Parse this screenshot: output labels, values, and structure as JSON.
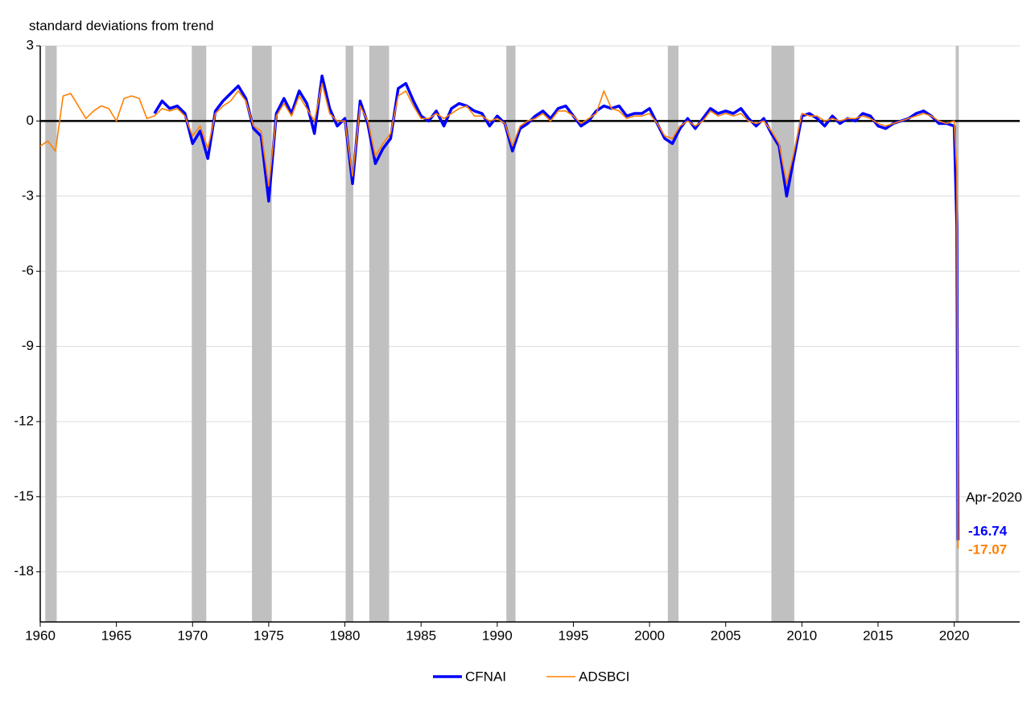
{
  "chart_data": {
    "type": "line",
    "y_label": "standard deviations from trend",
    "annotation": "Apr-2020",
    "xlim": [
      1960,
      2024.3
    ],
    "ylim": [
      -20,
      3
    ],
    "xticks": [
      1960,
      1965,
      1970,
      1975,
      1980,
      1985,
      1990,
      1995,
      2000,
      2005,
      2010,
      2015,
      2020
    ],
    "yticks": [
      3,
      0,
      -3,
      -6,
      -9,
      -12,
      -15,
      -18
    ],
    "grid": true,
    "hline": 0,
    "legend": "bottom",
    "recession_color": "#c0c0c0",
    "recessions": [
      [
        1960.33,
        1961.08
      ],
      [
        1969.95,
        1970.9
      ],
      [
        1973.9,
        1975.2
      ],
      [
        1980.05,
        1980.55
      ],
      [
        1981.6,
        1982.9
      ],
      [
        1990.6,
        1991.2
      ],
      [
        2001.2,
        2001.9
      ],
      [
        2008.0,
        2009.5
      ],
      [
        2020.1,
        2020.3
      ]
    ],
    "x": [
      1960,
      1960.5,
      1961,
      1961.5,
      1962,
      1962.5,
      1963,
      1963.5,
      1964,
      1964.5,
      1965,
      1965.5,
      1966,
      1966.5,
      1967,
      1967.5,
      1968,
      1968.5,
      1969,
      1969.5,
      1970,
      1970.5,
      1971,
      1971.5,
      1972,
      1972.5,
      1973,
      1973.5,
      1974,
      1974.5,
      1975,
      1975.5,
      1976,
      1976.5,
      1977,
      1977.5,
      1978,
      1978.5,
      1979,
      1979.5,
      1980,
      1980.5,
      1981,
      1981.5,
      1982,
      1982.5,
      1983,
      1983.5,
      1984,
      1984.5,
      1985,
      1985.5,
      1986,
      1986.5,
      1987,
      1987.5,
      1988,
      1988.5,
      1989,
      1989.5,
      1990,
      1990.5,
      1991,
      1991.5,
      1992,
      1992.5,
      1993,
      1993.5,
      1994,
      1994.5,
      1995,
      1995.5,
      1996,
      1996.5,
      1997,
      1997.5,
      1998,
      1998.5,
      1999,
      1999.5,
      2000,
      2000.5,
      2001,
      2001.5,
      2002,
      2002.5,
      2003,
      2003.5,
      2004,
      2004.5,
      2005,
      2005.5,
      2006,
      2006.5,
      2007,
      2007.5,
      2008,
      2008.5,
      2009,
      2009.5,
      2010,
      2010.5,
      2011,
      2011.5,
      2012,
      2012.5,
      2013,
      2013.5,
      2014,
      2014.5,
      2015,
      2015.5,
      2016,
      2016.5,
      2017,
      2017.5,
      2018,
      2018.5,
      2019,
      2019.5,
      2020,
      2020.17,
      2020.25
    ],
    "series": [
      {
        "name": "CFNAI",
        "color": "#0000ff",
        "width": 3.5,
        "values": [
          null,
          null,
          null,
          null,
          null,
          null,
          null,
          null,
          null,
          null,
          null,
          null,
          null,
          null,
          null,
          0.3,
          0.8,
          0.5,
          0.6,
          0.3,
          -0.9,
          -0.4,
          -1.5,
          0.4,
          0.8,
          1.1,
          1.4,
          0.9,
          -0.3,
          -0.6,
          -3.2,
          0.3,
          0.9,
          0.3,
          1.2,
          0.7,
          -0.5,
          1.8,
          0.5,
          -0.2,
          0.1,
          -2.5,
          0.8,
          -0.1,
          -1.7,
          -1.1,
          -0.7,
          1.3,
          1.5,
          0.8,
          0.2,
          0.0,
          0.4,
          -0.2,
          0.5,
          0.7,
          0.6,
          0.4,
          0.3,
          -0.2,
          0.2,
          -0.1,
          -1.2,
          -0.3,
          -0.1,
          0.2,
          0.4,
          0.1,
          0.5,
          0.6,
          0.2,
          -0.2,
          0.0,
          0.4,
          0.6,
          0.5,
          0.6,
          0.2,
          0.3,
          0.3,
          0.5,
          -0.1,
          -0.7,
          -0.9,
          -0.3,
          0.1,
          -0.3,
          0.1,
          0.5,
          0.3,
          0.4,
          0.3,
          0.5,
          0.1,
          -0.2,
          0.1,
          -0.5,
          -1.0,
          -3.0,
          -1.4,
          0.2,
          0.3,
          0.1,
          -0.2,
          0.2,
          -0.1,
          0.1,
          0.0,
          0.3,
          0.2,
          -0.2,
          -0.3,
          -0.1,
          0.0,
          0.1,
          0.3,
          0.4,
          0.2,
          -0.1,
          -0.1,
          -0.2,
          -4.2,
          -16.74
        ]
      },
      {
        "name": "ADSBCI",
        "color": "#ff8000",
        "width": 1.6,
        "values": [
          -1.0,
          -0.8,
          -1.2,
          1.0,
          1.1,
          0.6,
          0.1,
          0.4,
          0.6,
          0.5,
          0.0,
          0.9,
          1.0,
          0.9,
          0.1,
          0.2,
          0.5,
          0.4,
          0.5,
          0.2,
          -0.6,
          -0.2,
          -1.1,
          0.3,
          0.6,
          0.8,
          1.2,
          0.8,
          -0.2,
          -0.4,
          -2.6,
          0.2,
          0.7,
          0.2,
          1.0,
          0.5,
          0.0,
          1.5,
          0.3,
          0.0,
          0.0,
          -2.2,
          0.6,
          0.0,
          -1.4,
          -0.9,
          -0.5,
          1.0,
          1.2,
          0.6,
          0.1,
          0.1,
          0.3,
          0.1,
          0.3,
          0.5,
          0.6,
          0.2,
          0.2,
          0.0,
          0.1,
          -0.1,
          -1.0,
          -0.2,
          0.0,
          0.1,
          0.3,
          0.0,
          0.4,
          0.4,
          0.2,
          -0.1,
          0.1,
          0.3,
          1.2,
          0.5,
          0.4,
          0.1,
          0.2,
          0.2,
          0.3,
          -0.1,
          -0.6,
          -0.7,
          -0.2,
          0.0,
          -0.2,
          0.0,
          0.4,
          0.2,
          0.3,
          0.2,
          0.3,
          0.0,
          -0.1,
          0.0,
          -0.4,
          -0.9,
          -2.5,
          -1.2,
          0.3,
          0.2,
          0.2,
          0.0,
          0.1,
          0.0,
          0.1,
          0.1,
          0.2,
          0.1,
          -0.1,
          -0.2,
          -0.1,
          0.0,
          0.1,
          0.2,
          0.3,
          0.2,
          0.0,
          -0.1,
          0.0,
          -2.0,
          -17.07
        ]
      }
    ]
  }
}
